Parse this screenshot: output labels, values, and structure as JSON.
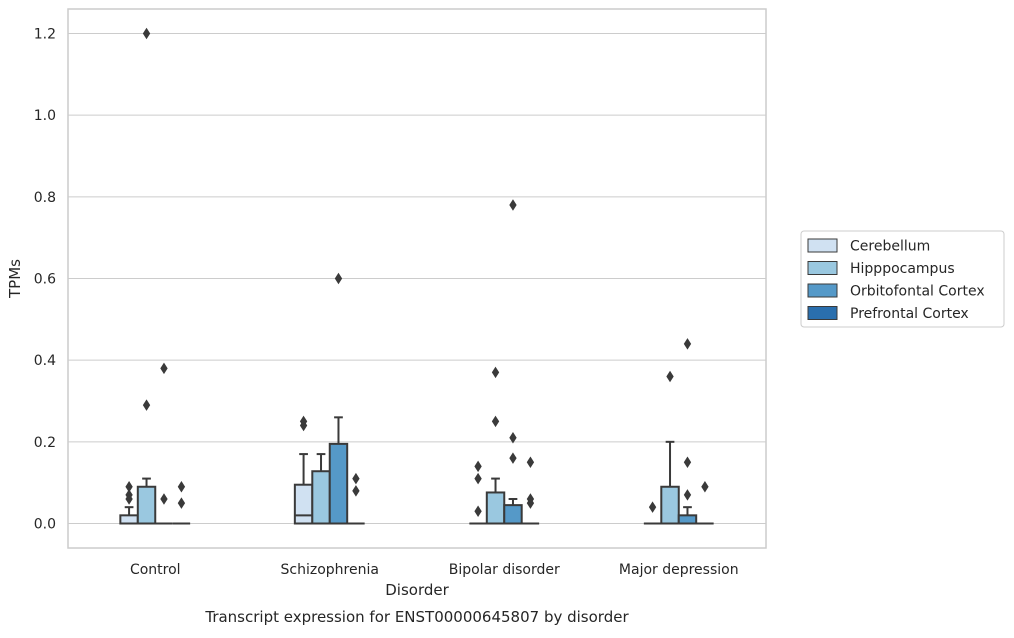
{
  "chart_data": {
    "type": "box",
    "title": "",
    "caption": "Transcript expression for ENST00000645807 by disorder",
    "xlabel": "Disorder",
    "ylabel": "TPMs",
    "ylim": [
      -0.06,
      1.26
    ],
    "yticks": [
      0.0,
      0.2,
      0.4,
      0.6,
      0.8,
      1.0,
      1.2
    ],
    "ytick_labels": [
      "0.0",
      "0.2",
      "0.4",
      "0.6",
      "0.8",
      "1.0",
      "1.2"
    ],
    "grid": "horizontal",
    "legend_position": "right",
    "categories": [
      "Control",
      "Schizophrenia",
      "Bipolar disorder",
      "Major depression"
    ],
    "series": [
      {
        "name": "Cerebellum",
        "color": "#d0e1f2",
        "boxes": [
          {
            "q1": 0.0,
            "median": 0.0,
            "q3": 0.02,
            "whisker_low": 0.0,
            "whisker_high": 0.04,
            "outliers": [
              0.06,
              0.07,
              0.09
            ]
          },
          {
            "q1": 0.0,
            "median": 0.02,
            "q3": 0.095,
            "whisker_low": 0.0,
            "whisker_high": 0.17,
            "outliers": [
              0.24,
              0.25
            ]
          },
          {
            "q1": 0.0,
            "median": 0.0,
            "q3": 0.0,
            "whisker_low": 0.0,
            "whisker_high": 0.0,
            "outliers": [
              0.03,
              0.11,
              0.14
            ]
          },
          {
            "q1": 0.0,
            "median": 0.0,
            "q3": 0.0,
            "whisker_low": 0.0,
            "whisker_high": 0.0,
            "outliers": [
              0.04
            ]
          }
        ]
      },
      {
        "name": "Hipppocampus",
        "color": "#9ac8e0",
        "boxes": [
          {
            "q1": 0.0,
            "median": 0.0,
            "q3": 0.09,
            "whisker_low": 0.0,
            "whisker_high": 0.11,
            "outliers": [
              0.29,
              1.2
            ]
          },
          {
            "q1": 0.0,
            "median": 0.0,
            "q3": 0.128,
            "whisker_low": 0.0,
            "whisker_high": 0.17,
            "outliers": []
          },
          {
            "q1": 0.0,
            "median": 0.0,
            "q3": 0.076,
            "whisker_low": 0.0,
            "whisker_high": 0.11,
            "outliers": [
              0.25,
              0.37
            ]
          },
          {
            "q1": 0.0,
            "median": 0.0,
            "q3": 0.09,
            "whisker_low": 0.0,
            "whisker_high": 0.2,
            "outliers": [
              0.36
            ]
          }
        ]
      },
      {
        "name": "Orbitofontal Cortex",
        "color": "#5599c8",
        "boxes": [
          {
            "q1": 0.0,
            "median": 0.0,
            "q3": 0.0,
            "whisker_low": 0.0,
            "whisker_high": 0.0,
            "outliers": [
              0.06,
              0.38
            ]
          },
          {
            "q1": 0.0,
            "median": 0.0,
            "q3": 0.195,
            "whisker_low": 0.0,
            "whisker_high": 0.26,
            "outliers": [
              0.6
            ]
          },
          {
            "q1": 0.0,
            "median": 0.0,
            "q3": 0.045,
            "whisker_low": 0.0,
            "whisker_high": 0.06,
            "outliers": [
              0.16,
              0.21,
              0.78
            ]
          },
          {
            "q1": 0.0,
            "median": 0.0,
            "q3": 0.02,
            "whisker_low": 0.0,
            "whisker_high": 0.04,
            "outliers": [
              0.07,
              0.15,
              0.44
            ]
          }
        ]
      },
      {
        "name": "Prefrontal Cortex",
        "color": "#2a6fae",
        "boxes": [
          {
            "q1": 0.0,
            "median": 0.0,
            "q3": 0.0,
            "whisker_low": 0.0,
            "whisker_high": 0.0,
            "outliers": [
              0.05,
              0.09
            ]
          },
          {
            "q1": 0.0,
            "median": 0.0,
            "q3": 0.0,
            "whisker_low": 0.0,
            "whisker_high": 0.0,
            "outliers": [
              0.08,
              0.11
            ]
          },
          {
            "q1": 0.0,
            "median": 0.0,
            "q3": 0.0,
            "whisker_low": 0.0,
            "whisker_high": 0.0,
            "outliers": [
              0.05,
              0.06,
              0.15
            ]
          },
          {
            "q1": 0.0,
            "median": 0.0,
            "q3": 0.0,
            "whisker_low": 0.0,
            "whisker_high": 0.0,
            "outliers": [
              0.09
            ]
          }
        ]
      }
    ],
    "colors": {
      "grid": "#cccccc",
      "spine": "#cccccc",
      "box_edge": "#3a3a3a",
      "text": "#262626"
    }
  }
}
